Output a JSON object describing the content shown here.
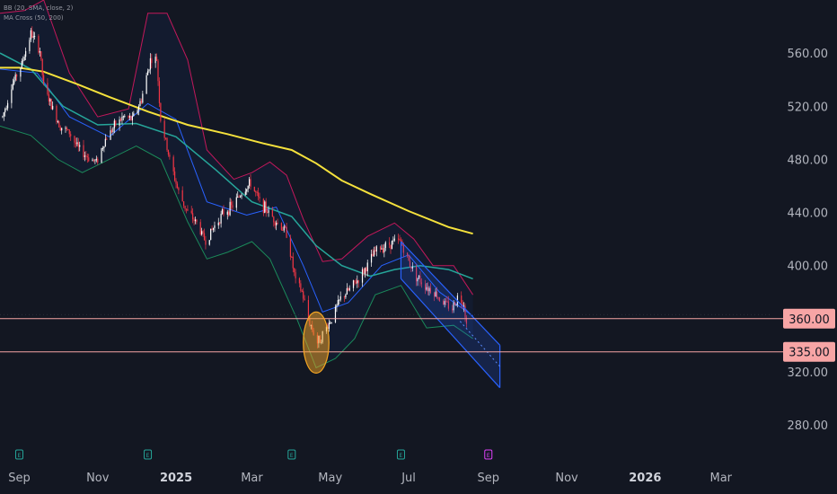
{
  "indicators": {
    "bb": "BB (20, SMA, close, 2)",
    "ma": "MA Cross (50, 200)"
  },
  "colors": {
    "background": "#131722",
    "candle_up": "#ffffff",
    "candle_down": "#f23645",
    "ma200": "#f5e13c",
    "ma50": "#26a69a",
    "bb_upper": "#c2185b",
    "bb_lower": "#1b8a5a",
    "bb_basis": "#2962ff",
    "level_line": "#f7a5a5",
    "channel": "#2962ff",
    "highlight": "#f5a623"
  },
  "event_markers": [
    "E",
    "E",
    "E",
    "E",
    "E"
  ],
  "chart_data": {
    "type": "candlestick",
    "y_axis_ticks": [
      "560.00",
      "520.00",
      "480.00",
      "440.00",
      "400.00",
      "320.00",
      "280.00"
    ],
    "x_axis_ticks": [
      "Sep",
      "Nov",
      "2025",
      "Mar",
      "May",
      "Jul",
      "Sep",
      "Nov",
      "2026",
      "Mar"
    ],
    "ylim": [
      255,
      600
    ],
    "xlim": [
      "2024-08-17",
      "2026-04-10"
    ],
    "levels": [
      {
        "value": 360,
        "label": "360.00"
      },
      {
        "value": 335,
        "label": "335.00"
      }
    ],
    "price_path": [
      [
        "2024-08-19",
        512
      ],
      [
        "2024-08-26",
        535
      ],
      [
        "2024-09-03",
        552
      ],
      [
        "2024-09-10",
        575
      ],
      [
        "2024-09-17",
        562
      ],
      [
        "2024-09-20",
        535
      ],
      [
        "2024-09-26",
        520
      ],
      [
        "2024-10-03",
        505
      ],
      [
        "2024-10-10",
        500
      ],
      [
        "2024-10-17",
        488
      ],
      [
        "2024-10-24",
        482
      ],
      [
        "2024-10-31",
        478
      ],
      [
        "2024-11-07",
        495
      ],
      [
        "2024-11-14",
        505
      ],
      [
        "2024-11-21",
        512
      ],
      [
        "2024-11-28",
        510
      ],
      [
        "2024-12-05",
        525
      ],
      [
        "2024-12-12",
        555
      ],
      [
        "2024-12-17",
        555
      ],
      [
        "2024-12-20",
        510
      ],
      [
        "2024-12-27",
        480
      ],
      [
        "2025-01-03",
        455
      ],
      [
        "2025-01-10",
        440
      ],
      [
        "2025-01-17",
        432
      ],
      [
        "2025-01-24",
        418
      ],
      [
        "2025-01-31",
        430
      ],
      [
        "2025-02-07",
        440
      ],
      [
        "2025-02-14",
        445
      ],
      [
        "2025-02-21",
        455
      ],
      [
        "2025-02-28",
        462
      ],
      [
        "2025-03-07",
        448
      ],
      [
        "2025-03-14",
        440
      ],
      [
        "2025-03-21",
        432
      ],
      [
        "2025-03-28",
        425
      ],
      [
        "2025-04-04",
        388
      ],
      [
        "2025-04-09",
        380
      ],
      [
        "2025-04-14",
        360
      ],
      [
        "2025-04-21",
        342
      ],
      [
        "2025-04-25",
        348
      ],
      [
        "2025-05-02",
        360
      ],
      [
        "2025-05-09",
        375
      ],
      [
        "2025-05-16",
        382
      ],
      [
        "2025-05-23",
        390
      ],
      [
        "2025-05-30",
        400
      ],
      [
        "2025-06-06",
        412
      ],
      [
        "2025-06-13",
        415
      ],
      [
        "2025-06-20",
        418
      ],
      [
        "2025-06-25",
        418
      ],
      [
        "2025-06-30",
        405
      ],
      [
        "2025-07-07",
        392
      ],
      [
        "2025-07-14",
        385
      ],
      [
        "2025-07-21",
        380
      ],
      [
        "2025-07-28",
        372
      ],
      [
        "2025-08-04",
        368
      ],
      [
        "2025-08-08",
        376
      ],
      [
        "2025-08-13",
        372
      ],
      [
        "2025-08-15",
        355
      ]
    ],
    "ma200": [
      [
        "2024-08-17",
        549
      ],
      [
        "2024-09-01",
        549
      ],
      [
        "2024-09-20",
        546
      ],
      [
        "2024-10-15",
        537
      ],
      [
        "2024-11-10",
        527
      ],
      [
        "2024-12-10",
        516
      ],
      [
        "2025-01-10",
        506
      ],
      [
        "2025-02-10",
        499
      ],
      [
        "2025-03-10",
        492
      ],
      [
        "2025-04-01",
        487
      ],
      [
        "2025-04-20",
        477
      ],
      [
        "2025-05-10",
        464
      ],
      [
        "2025-06-01",
        454
      ],
      [
        "2025-07-01",
        441
      ],
      [
        "2025-08-01",
        429
      ],
      [
        "2025-08-20",
        424
      ]
    ],
    "ma50": [
      [
        "2024-08-17",
        560
      ],
      [
        "2024-09-10",
        548
      ],
      [
        "2024-10-05",
        520
      ],
      [
        "2024-11-01",
        506
      ],
      [
        "2024-12-01",
        507
      ],
      [
        "2025-01-01",
        497
      ],
      [
        "2025-02-01",
        472
      ],
      [
        "2025-03-01",
        448
      ],
      [
        "2025-04-01",
        437
      ],
      [
        "2025-04-20",
        415
      ],
      [
        "2025-05-10",
        400
      ],
      [
        "2025-06-01",
        392
      ],
      [
        "2025-06-20",
        397
      ],
      [
        "2025-07-10",
        400
      ],
      [
        "2025-08-01",
        397
      ],
      [
        "2025-08-20",
        390
      ]
    ],
    "bb_upper": [
      [
        "2024-08-17",
        590
      ],
      [
        "2024-09-05",
        592
      ],
      [
        "2024-09-20",
        600
      ],
      [
        "2024-10-10",
        545
      ],
      [
        "2024-11-01",
        512
      ],
      [
        "2024-11-25",
        518
      ],
      [
        "2024-12-10",
        590
      ],
      [
        "2024-12-25",
        590
      ],
      [
        "2025-01-10",
        555
      ],
      [
        "2025-01-25",
        487
      ],
      [
        "2025-02-15",
        465
      ],
      [
        "2025-03-01",
        470
      ],
      [
        "2025-03-15",
        478
      ],
      [
        "2025-03-28",
        468
      ],
      [
        "2025-04-10",
        435
      ],
      [
        "2025-04-25",
        403
      ],
      [
        "2025-05-10",
        405
      ],
      [
        "2025-05-30",
        422
      ],
      [
        "2025-06-20",
        432
      ],
      [
        "2025-07-05",
        420
      ],
      [
        "2025-07-20",
        400
      ],
      [
        "2025-08-05",
        400
      ],
      [
        "2025-08-20",
        378
      ]
    ],
    "bb_lower": [
      [
        "2024-08-17",
        505
      ],
      [
        "2024-09-10",
        498
      ],
      [
        "2024-10-01",
        480
      ],
      [
        "2024-10-20",
        470
      ],
      [
        "2024-11-10",
        480
      ],
      [
        "2024-12-01",
        490
      ],
      [
        "2024-12-20",
        480
      ],
      [
        "2025-01-10",
        433
      ],
      [
        "2025-01-25",
        405
      ],
      [
        "2025-02-10",
        410
      ],
      [
        "2025-03-01",
        418
      ],
      [
        "2025-03-15",
        405
      ],
      [
        "2025-04-05",
        360
      ],
      [
        "2025-04-20",
        323
      ],
      [
        "2025-05-05",
        330
      ],
      [
        "2025-05-20",
        345
      ],
      [
        "2025-06-05",
        378
      ],
      [
        "2025-06-25",
        385
      ],
      [
        "2025-07-15",
        353
      ],
      [
        "2025-08-05",
        355
      ],
      [
        "2025-08-20",
        345
      ]
    ],
    "bb_basis": [
      [
        "2024-08-17",
        548
      ],
      [
        "2024-09-15",
        545
      ],
      [
        "2024-10-10",
        512
      ],
      [
        "2024-11-10",
        497
      ],
      [
        "2024-12-10",
        522
      ],
      [
        "2025-01-01",
        510
      ],
      [
        "2025-01-25",
        448
      ],
      [
        "2025-02-25",
        438
      ],
      [
        "2025-03-20",
        444
      ],
      [
        "2025-04-10",
        400
      ],
      [
        "2025-04-25",
        365
      ],
      [
        "2025-05-15",
        372
      ],
      [
        "2025-06-10",
        400
      ],
      [
        "2025-07-01",
        408
      ],
      [
        "2025-07-25",
        380
      ],
      [
        "2025-08-20",
        362
      ]
    ],
    "channel": {
      "upper": [
        [
          "2025-06-25",
          418
        ],
        [
          "2025-09-10",
          340
        ]
      ],
      "lower": [
        [
          "2025-06-25",
          390
        ],
        [
          "2025-09-10",
          308
        ]
      ],
      "mid": [
        [
          "2025-08-10",
          358
        ],
        [
          "2025-09-10",
          324
        ]
      ]
    },
    "highlight_zone": {
      "x": "2025-04-20",
      "y": 342,
      "rx_days": 10,
      "ry_value": 23
    },
    "event_dates": [
      "2024-09-01",
      "2024-12-10",
      "2025-04-01",
      "2025-06-25",
      "2025-09-01"
    ]
  }
}
